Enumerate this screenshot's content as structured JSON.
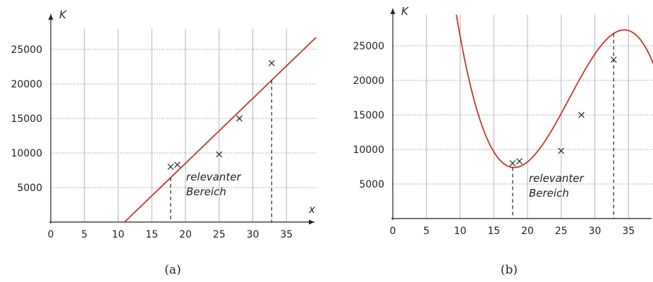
{
  "chart_data": [
    {
      "type": "scatter",
      "panel_label": "(a)",
      "xlabel": "x",
      "ylabel": "K",
      "xlim": [
        0,
        39.5
      ],
      "ylim": [
        0,
        28000
      ],
      "xticks": [
        0,
        5,
        10,
        15,
        20,
        25,
        30,
        35
      ],
      "yticks": [
        5000,
        10000,
        15000,
        20000,
        25000
      ],
      "points": [
        {
          "x": 17.8,
          "y": 8000
        },
        {
          "x": 18.8,
          "y": 8300
        },
        {
          "x": 25,
          "y": 9800
        },
        {
          "x": 28,
          "y": 15000
        },
        {
          "x": 32.8,
          "y": 23000
        }
      ],
      "fit": {
        "kind": "linear",
        "slope": 940,
        "intercept": -10300
      },
      "range_markers": [
        17.8,
        32.8
      ],
      "annotation": [
        "relevanter",
        "Bereich"
      ],
      "grid": true
    },
    {
      "type": "scatter",
      "panel_label": "(b)",
      "xlabel": "",
      "ylabel": "K",
      "xlim": [
        0,
        38.8
      ],
      "ylim": [
        0,
        29500
      ],
      "xticks": [
        0,
        5,
        10,
        15,
        20,
        25,
        30,
        35
      ],
      "yticks": [
        5000,
        10000,
        15000,
        20000,
        25000
      ],
      "points": [
        {
          "x": 17.8,
          "y": 8000
        },
        {
          "x": 18.8,
          "y": 8300
        },
        {
          "x": 25,
          "y": 9800
        },
        {
          "x": 28,
          "y": 15000
        },
        {
          "x": 32.8,
          "y": 23000
        }
      ],
      "fit": {
        "kind": "cubic",
        "coefficients": [
          -9.1,
          715,
          -16900,
          133000
        ]
      },
      "range_markers": [
        17.8,
        32.8
      ],
      "annotation": [
        "relevanter",
        "Bereich"
      ],
      "grid": true
    }
  ],
  "colors": {
    "curve": "#c8342a",
    "axis": "#222222",
    "grid": "#b5b5b5"
  }
}
